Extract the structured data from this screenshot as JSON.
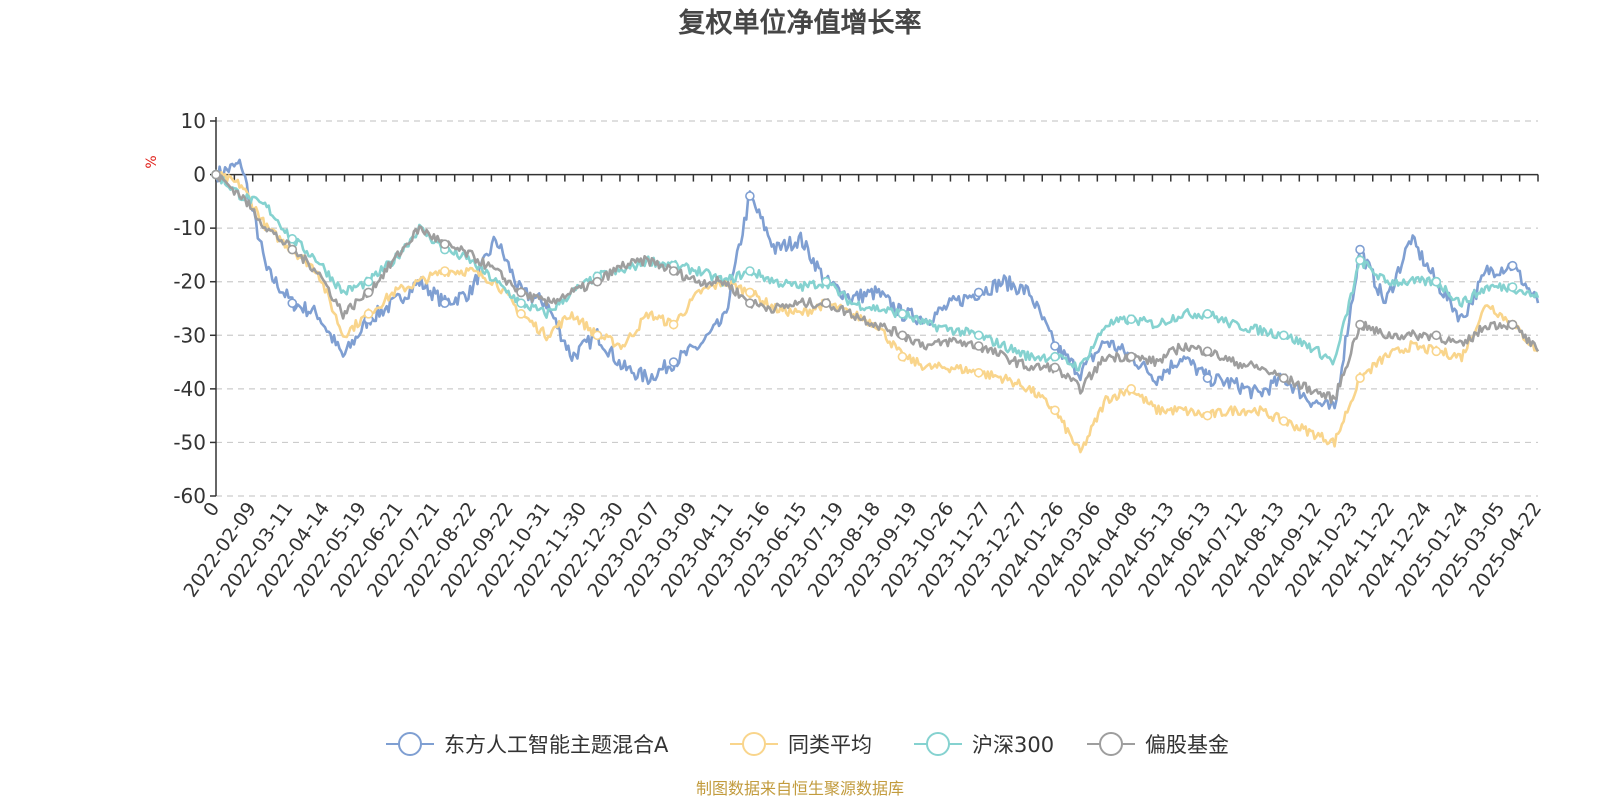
{
  "chart_data": {
    "type": "line",
    "title": "复权单位净值增长率",
    "ylabel": "%",
    "ylim": [
      -60,
      10
    ],
    "yticks": [
      10,
      0,
      -10,
      -20,
      -30,
      -40,
      -50,
      -60
    ],
    "grid": true,
    "legend_position": "bottom",
    "source": "制图数据来自恒生聚源数据库",
    "x_labels": [
      "0",
      "2022-02-09",
      "2022-03-11",
      "2022-04-14",
      "2022-05-19",
      "2022-06-21",
      "2022-07-21",
      "2022-08-22",
      "2022-09-22",
      "2022-10-31",
      "2022-11-30",
      "2022-12-30",
      "2023-02-07",
      "2023-03-09",
      "2023-04-11",
      "2023-05-16",
      "2023-06-15",
      "2023-07-19",
      "2023-08-18",
      "2023-09-19",
      "2023-10-26",
      "2023-11-27",
      "2023-12-27",
      "2024-01-26",
      "2024-03-06",
      "2024-04-08",
      "2024-05-13",
      "2024-06-13",
      "2024-07-12",
      "2024-08-13",
      "2024-09-12",
      "2024-10-23",
      "2024-11-22",
      "2024-12-24",
      "2025-01-24",
      "2025-03-05",
      "2025-04-22"
    ],
    "series": [
      {
        "name": "东方人工智能主题混合A",
        "color": "#7f9fd2",
        "values": [
          0,
          2,
          -18,
          -24,
          -26,
          -34,
          -27,
          -24,
          -20,
          -24,
          -22,
          -12,
          -22,
          -24,
          -34,
          -30,
          -36,
          -38,
          -35,
          -32,
          -27,
          -4,
          -14,
          -12,
          -20,
          -23,
          -22,
          -26,
          -27,
          -24,
          -22,
          -20,
          -22,
          -32,
          -37,
          -31,
          -34,
          -38,
          -34,
          -38,
          -39,
          -41,
          -38,
          -42,
          -44,
          -14,
          -24,
          -12,
          -20,
          -27,
          -18,
          -17,
          -24
        ]
      },
      {
        "name": "同类平均",
        "color": "#f9d58c",
        "values": [
          0,
          -2,
          -10,
          -14,
          -18,
          -30,
          -26,
          -22,
          -20,
          -18,
          -18,
          -20,
          -26,
          -30,
          -26,
          -30,
          -32,
          -26,
          -28,
          -22,
          -20,
          -22,
          -25,
          -26,
          -24,
          -26,
          -28,
          -34,
          -36,
          -36,
          -37,
          -38,
          -40,
          -44,
          -52,
          -42,
          -40,
          -44,
          -44,
          -45,
          -44,
          -44,
          -46,
          -48,
          -50,
          -38,
          -34,
          -32,
          -33,
          -34,
          -24,
          -28,
          -33
        ]
      },
      {
        "name": "沪深300",
        "color": "#85d2d0",
        "values": [
          0,
          -4,
          -6,
          -12,
          -16,
          -22,
          -20,
          -16,
          -10,
          -14,
          -16,
          -20,
          -24,
          -26,
          -22,
          -19,
          -18,
          -16,
          -17,
          -18,
          -20,
          -18,
          -20,
          -21,
          -20,
          -24,
          -25,
          -26,
          -28,
          -29,
          -30,
          -32,
          -34,
          -34,
          -36,
          -28,
          -27,
          -28,
          -26,
          -26,
          -28,
          -29,
          -30,
          -32,
          -35,
          -16,
          -20,
          -20,
          -20,
          -24,
          -21,
          -21,
          -23
        ]
      },
      {
        "name": "偏股基金",
        "color": "#9e9e9e",
        "values": [
          0,
          -4,
          -10,
          -14,
          -18,
          -26,
          -22,
          -16,
          -10,
          -13,
          -15,
          -18,
          -22,
          -24,
          -22,
          -20,
          -17,
          -16,
          -18,
          -20,
          -20,
          -24,
          -25,
          -24,
          -24,
          -26,
          -28,
          -30,
          -32,
          -31,
          -32,
          -34,
          -36,
          -36,
          -40,
          -34,
          -34,
          -35,
          -32,
          -33,
          -35,
          -36,
          -38,
          -40,
          -42,
          -28,
          -30,
          -30,
          -30,
          -32,
          -28,
          -28,
          -33
        ]
      }
    ]
  }
}
